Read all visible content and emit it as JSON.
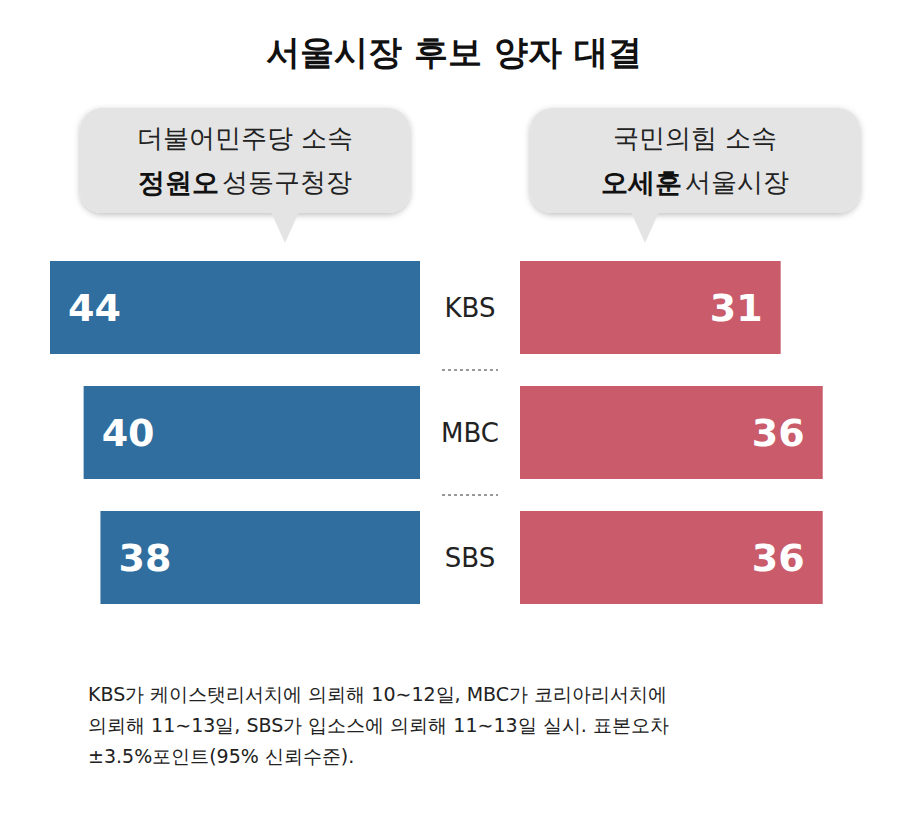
{
  "chart_data": {
    "type": "bar",
    "orientation": "horizontal",
    "title": "서울시장 후보 양자 대결",
    "categories": [
      "KBS",
      "MBC",
      "SBS"
    ],
    "series": [
      {
        "name": "정원오",
        "office": "성동구청장",
        "affiliation": "더불어민주당 소속",
        "color": "#2f6e9e",
        "values": [
          44,
          40,
          38
        ]
      },
      {
        "name": "오세훈",
        "office": "서울시장",
        "affiliation": "국민의힘 소속",
        "color": "#c95b6b",
        "values": [
          31,
          36,
          36
        ]
      }
    ],
    "xlim": [
      0,
      44
    ],
    "grid": false,
    "data_labels": true,
    "tick_labels": "y",
    "note": [
      "KBS가 케이스탯리서치에 의뢰해 10∼12일, MBC가 코리아리서치에",
      "의뢰해 11∼13일, SBS가 입소스에 의뢰해 11∼13일 실시. 표본오차",
      "±3.5%포인트(95% 신뢰수준)."
    ]
  }
}
